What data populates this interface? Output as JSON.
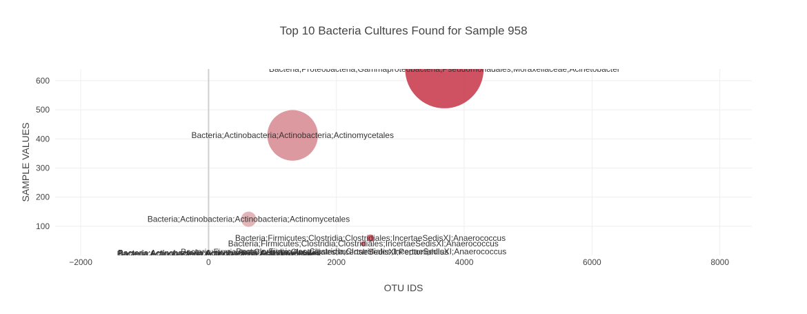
{
  "chart_data": {
    "type": "scatter",
    "title": "Top 10 Bacteria Cultures Found for Sample 958",
    "xlabel": "OTU IDS",
    "ylabel": "SAMPLE VALUES",
    "xlim": [
      -2400,
      8500
    ],
    "ylim": [
      0,
      640
    ],
    "xticks": [
      -2000,
      0,
      2000,
      4000,
      6000,
      8000
    ],
    "xtick_labels": [
      "−2000",
      "0",
      "2000",
      "4000",
      "6000",
      "8000"
    ],
    "yticks": [
      100,
      200,
      300,
      400,
      500,
      600
    ],
    "ytick_labels": [
      "100",
      "200",
      "300",
      "400",
      "500",
      "600"
    ],
    "grid": true,
    "colorscale": [
      "#e8e1dd",
      "#c73446"
    ],
    "points": [
      {
        "x": 1315,
        "y": 412,
        "size": 412,
        "text": "Bacteria;Actinobacteria;Actinobacteria;Actinomycetales"
      },
      {
        "x": 3690,
        "y": 640,
        "size": 640,
        "text": "Bacteria;Proteobacteria;Gammaproteobacteria;Pseudomonadales;Moraxellaceae;Acinetobacter"
      },
      {
        "x": 627,
        "y": 124,
        "size": 124,
        "text": "Bacteria;Actinobacteria;Actinobacteria;Actinomycetales"
      },
      {
        "x": 2532,
        "y": 59,
        "size": 59,
        "text": "Bacteria;Firmicutes;Clostridia;Clostridiales;IncertaeSedisXI;Anaerococcus"
      },
      {
        "x": 2421,
        "y": 40,
        "size": 40,
        "text": "Bacteria;Firmicutes;Clostridia;Clostridiales;IncertaeSedisXI;Anaerococcus"
      },
      {
        "x": 2545,
        "y": 13,
        "size": 13,
        "text": "Bacteria;Firmicutes;Clostridia;Clostridiales;IncertaeSedisXI;Anaerococcus"
      },
      {
        "x": 1660,
        "y": 12,
        "size": 12,
        "text": "Bacteria;Firmicutes;Clostridia;Clostridiales;IncertaeSedisXI;Peptoniphilus"
      },
      {
        "x": 165,
        "y": 8,
        "size": 8,
        "text": "Bacteria;Actinobacteria;Actinobacteria;Actinomycetales"
      },
      {
        "x": 170,
        "y": 6,
        "size": 6,
        "text": "Bacteria;Actinobacteria;Actinobacteria;Actinomycetales"
      },
      {
        "x": 150,
        "y": 5,
        "size": 5,
        "text": "Bacteria;Actinobacteria;Actinobacteria;Actinomycetales"
      }
    ]
  }
}
